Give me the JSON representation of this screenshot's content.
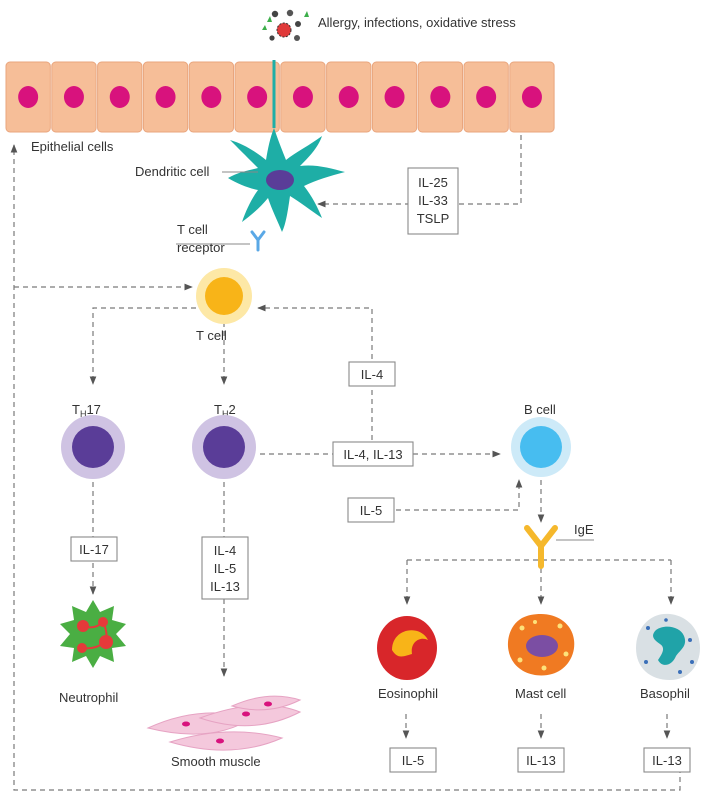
{
  "trigger": "Allergy, infections, oxidative stress",
  "epithelium": "Epithelial cells",
  "dendritic": "Dendritic cell",
  "tcr": {
    "line1": "T cell",
    "line2": "receptor"
  },
  "epi_cytokines": [
    "IL-25",
    "IL-33",
    "TSLP"
  ],
  "tcell": "T cell",
  "th17": {
    "main": "T",
    "sub": "H",
    "suffix": "17"
  },
  "th2": {
    "main": "T",
    "sub": "H",
    "suffix": "2"
  },
  "bcell": "B cell",
  "cytokines": {
    "il4_feedback": "IL-4",
    "il4_il13": "IL-4, IL-13",
    "il5_bcell": "IL-5",
    "il17": "IL-17",
    "th2_out": [
      "IL-4",
      "IL-5",
      "IL-13"
    ],
    "eos_out": "IL-5",
    "mast_out": "IL-13",
    "baso_out": "IL-13"
  },
  "ige": "IgE",
  "neutrophil": "Neutrophil",
  "smooth_muscle": "Smooth muscle",
  "eosinophil": "Eosinophil",
  "mast_cell": "Mast cell",
  "basophil": "Basophil",
  "colors": {
    "epithelium": "#f6be98",
    "nucleus": "#d8127d",
    "dendritic": "#1eaea6",
    "tcell": "#f8b418",
    "th": "#5a3d98",
    "bcell": "#47bdf0",
    "ige": "#f5b82c",
    "neutrophil": "#4aae43",
    "eosinophil": "#d8262a",
    "mast": "#f07a22",
    "basophil": "#20a3a8"
  }
}
